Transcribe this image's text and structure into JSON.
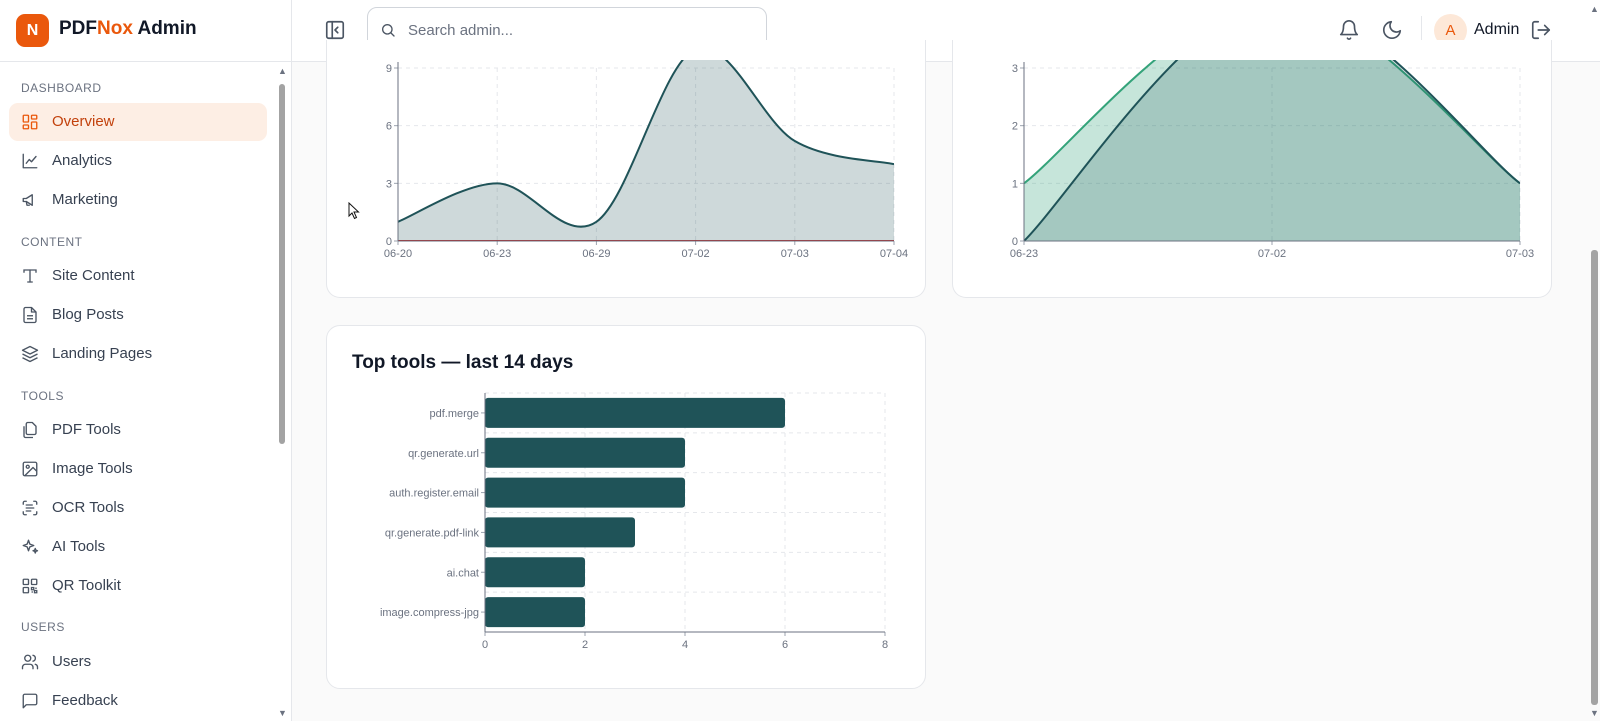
{
  "brand": {
    "badge": "N",
    "name_a": "PDF",
    "name_b": "Nox",
    "name_c": " Admin"
  },
  "search": {
    "placeholder": "Search admin..."
  },
  "user": {
    "initial": "A",
    "name": "Admin"
  },
  "sidebar": {
    "sections": [
      {
        "label": "DASHBOARD",
        "items": [
          {
            "label": "Overview",
            "icon": "grid-icon",
            "active": true
          },
          {
            "label": "Analytics",
            "icon": "line-chart-icon"
          },
          {
            "label": "Marketing",
            "icon": "megaphone-icon"
          }
        ]
      },
      {
        "label": "CONTENT",
        "items": [
          {
            "label": "Site Content",
            "icon": "type-icon"
          },
          {
            "label": "Blog Posts",
            "icon": "document-icon"
          },
          {
            "label": "Landing Pages",
            "icon": "layers-icon"
          }
        ]
      },
      {
        "label": "TOOLS",
        "items": [
          {
            "label": "PDF Tools",
            "icon": "files-icon"
          },
          {
            "label": "Image Tools",
            "icon": "image-icon"
          },
          {
            "label": "OCR Tools",
            "icon": "scan-text-icon"
          },
          {
            "label": "AI Tools",
            "icon": "sparkles-icon"
          },
          {
            "label": "QR Toolkit",
            "icon": "qr-code-icon"
          }
        ]
      },
      {
        "label": "USERS",
        "items": [
          {
            "label": "Users",
            "icon": "users-icon"
          },
          {
            "label": "Feedback",
            "icon": "message-icon"
          }
        ]
      }
    ]
  },
  "chart_data": [
    {
      "type": "area",
      "x": [
        "06-20",
        "06-23",
        "06-29",
        "07-02",
        "07-03",
        "07-04"
      ],
      "series": [
        {
          "values": [
            1,
            3,
            1,
            10,
            5.2,
            4
          ],
          "color": "#1f5358"
        },
        {
          "values": [
            0,
            0,
            0,
            0,
            0,
            0
          ],
          "color": "#b91c1c"
        }
      ],
      "yticks": [
        0,
        3,
        6,
        9
      ],
      "ylim": [
        0,
        9
      ],
      "grid": true
    },
    {
      "type": "area",
      "x": [
        "06-23",
        "07-02",
        "07-03"
      ],
      "series": [
        {
          "values": [
            1,
            4.2,
            1
          ],
          "color": "#34a37a"
        },
        {
          "values": [
            0,
            4.2,
            1
          ],
          "color": "#1f5358"
        }
      ],
      "yticks": [
        0,
        1,
        2,
        3
      ],
      "ylim": [
        0,
        3
      ],
      "grid": true
    },
    {
      "type": "bar",
      "orientation": "horizontal",
      "title": "Top tools — last 14 days",
      "categories": [
        "pdf.merge",
        "qr.generate.url",
        "auth.register.email",
        "qr.generate.pdf-link",
        "ai.chat",
        "image.compress-jpg"
      ],
      "values": [
        6,
        4,
        4,
        3,
        2,
        2
      ],
      "xticks": [
        0,
        2,
        4,
        6,
        8
      ],
      "xlim": [
        0,
        8
      ],
      "color": "#1f5358",
      "grid": true
    }
  ]
}
